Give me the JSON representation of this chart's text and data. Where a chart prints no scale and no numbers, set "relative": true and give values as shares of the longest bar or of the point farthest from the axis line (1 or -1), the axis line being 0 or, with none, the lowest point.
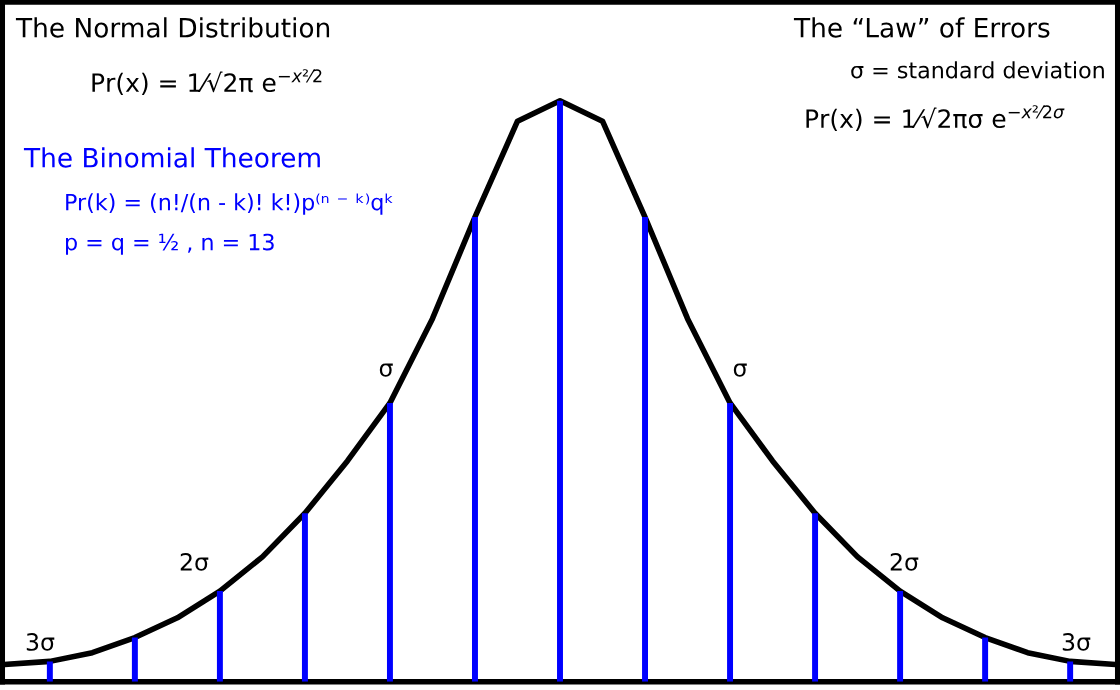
{
  "chart_data": [
    {
      "type": "line",
      "relative": true,
      "categories": [
        null,
        null,
        null,
        null,
        null,
        null,
        null,
        null,
        null,
        null,
        null,
        null,
        null,
        null,
        null,
        null,
        null,
        null,
        null,
        null,
        null,
        null,
        null,
        null,
        null,
        null,
        null
      ],
      "series": [
        {
          "color": "#000000",
          "values": [
            0.03,
            0.035,
            0.05,
            0.076,
            0.11,
            0.156,
            0.215,
            0.29,
            0.38,
            0.48,
            0.625,
            0.8,
            0.965,
            1,
            0.965,
            0.8,
            0.625,
            0.48,
            0.38,
            0.29,
            0.215,
            0.156,
            0.11,
            0.076,
            0.05,
            0.035,
            0.03
          ]
        }
      ],
      "annotations": [
        "The Normal Distribution",
        "Pr(x) = 1⁄√2π e$^{−x²⁄2}$",
        "The “Law” of Errors",
        "σ = standard deviation",
        "Pr(x) = 1⁄√2πσ e$^{−x²⁄2σ}$",
        "3σ",
        "2σ",
        "σ",
        "σ",
        "2σ",
        "3σ"
      ]
    },
    {
      "type": "bar",
      "relative": true,
      "categories": [
        null,
        null,
        null,
        null,
        null,
        null,
        null,
        null,
        null,
        null,
        null,
        null,
        null
      ],
      "series": [
        {
          "color": "#0000ff",
          "values": [
            0.035,
            0.076,
            0.156,
            0.29,
            0.48,
            0.8,
            1,
            0.8,
            0.48,
            0.29,
            0.156,
            0.076,
            0.035
          ]
        }
      ],
      "annotations": [
        "The Binomial Theorem",
        "Pr(k) = (n!/(n - k)! k!)p⁽ⁿ ⁻ ᵏ⁾qᵏ",
        "p = q = ½ , n = 13"
      ]
    }
  ]
}
